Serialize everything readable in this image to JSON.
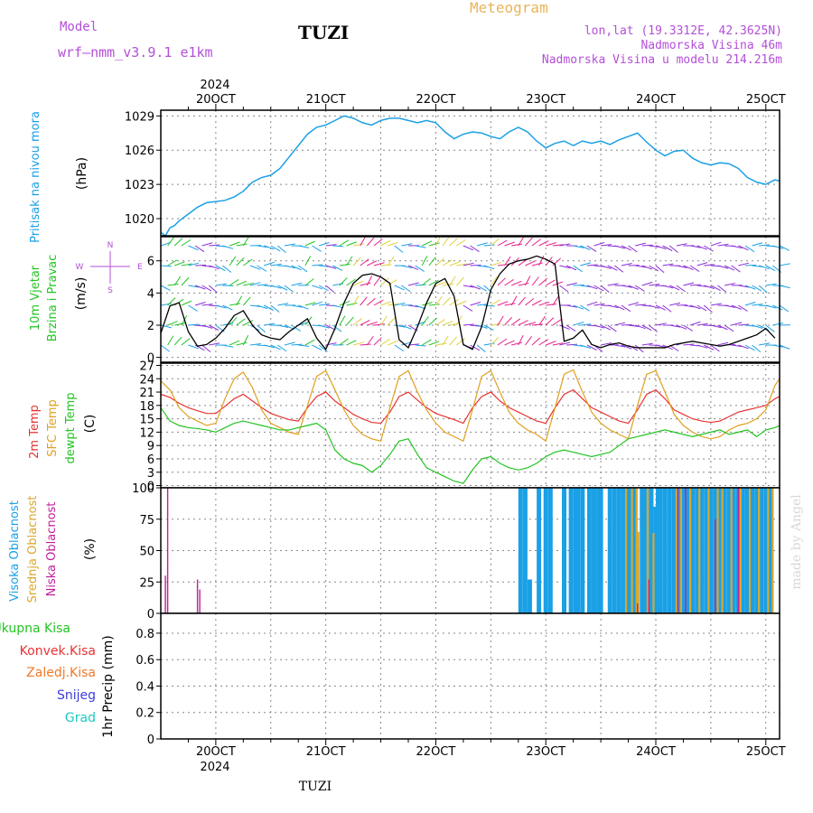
{
  "header": {
    "model_label": "Model",
    "model_name": "wrf—nmm_v3.9.1  e1km",
    "station": "TUZI",
    "product": "Meteogram",
    "lonlat": "lon,lat (19.3312E, 42.3625N)",
    "elevation": "Nadmorska Visina 46m",
    "model_elevation": "Nadmorska Visina u modelu 214.216m"
  },
  "footer": {
    "station": "TUZI",
    "credit": "made by Angel"
  },
  "time_axis": {
    "year": "2024",
    "labels": [
      "20OCT",
      "21OCT",
      "22OCT",
      "23OCT",
      "24OCT",
      "25OCT"
    ]
  },
  "panels": {
    "pressure": {
      "label": "Pritisak na nivou mora",
      "unit": "(hPa)"
    },
    "wind": {
      "label_line1": "10m Vjetar",
      "label_line2": "Brzina i Pravac",
      "unit": "(m/s)",
      "compass": {
        "n": "N",
        "s": "S",
        "w": "W",
        "e": "E"
      }
    },
    "temp": {
      "labels": [
        {
          "text": "2m Temp",
          "color": "#e83232"
        },
        {
          "text": "SFC Temp",
          "color": "#e0a020"
        },
        {
          "text": "dewpt Temp",
          "color": "#22c422"
        }
      ],
      "unit": "(C)"
    },
    "cloud": {
      "labels": [
        {
          "text": "Visoka Oblacnost",
          "color": "#1aa0e6"
        },
        {
          "text": "Srednja Oblacnost",
          "color": "#d8a830"
        },
        {
          "text": "Niska Oblacnost",
          "color": "#c0209a"
        }
      ],
      "unit": "(%)"
    },
    "precip": {
      "legend": [
        {
          "text": "Ukupna Kisa",
          "color": "#22c422"
        },
        {
          "text": "Konvek.Kisa",
          "color": "#e83232"
        },
        {
          "text": "Zaledj.Kisa",
          "color": "#f07828"
        },
        {
          "text": "Snijeg",
          "color": "#3c3cdc"
        },
        {
          "text": "Grad",
          "color": "#20c8c0"
        }
      ],
      "ylabel": "1hr Precip (mm)"
    }
  },
  "chart_data": [
    {
      "type": "line",
      "name": "pressure",
      "x_hours_from_19oct_12utc": [
        0,
        1,
        2,
        3,
        4,
        6,
        8,
        10,
        12,
        14,
        16,
        18,
        20,
        22,
        24,
        26,
        28,
        30,
        32,
        34,
        36,
        38,
        40,
        42,
        44,
        46,
        48,
        50,
        52,
        54,
        56,
        58,
        60,
        62,
        64,
        66,
        68,
        70,
        72,
        74,
        76,
        78,
        80,
        82,
        84,
        86,
        88,
        90,
        92,
        94,
        96,
        98,
        100,
        102,
        104,
        106,
        108,
        110,
        112,
        114,
        116,
        118,
        120,
        122,
        124,
        126,
        128,
        130,
        132,
        134,
        135
      ],
      "values": [
        1018.8,
        1018.5,
        1019.2,
        1019.4,
        1019.8,
        1020.4,
        1021.0,
        1021.4,
        1021.5,
        1021.6,
        1021.9,
        1022.4,
        1023.2,
        1023.6,
        1023.8,
        1024.4,
        1025.4,
        1026.4,
        1027.4,
        1028.0,
        1028.2,
        1028.6,
        1029.0,
        1028.8,
        1028.4,
        1028.2,
        1028.6,
        1028.8,
        1028.8,
        1028.6,
        1028.4,
        1028.6,
        1028.4,
        1027.6,
        1027.0,
        1027.4,
        1027.6,
        1027.5,
        1027.2,
        1027.0,
        1027.6,
        1028.0,
        1027.6,
        1026.8,
        1026.2,
        1026.6,
        1026.8,
        1026.4,
        1026.8,
        1026.6,
        1026.8,
        1026.5,
        1026.9,
        1027.2,
        1027.5,
        1026.7,
        1026.0,
        1025.5,
        1025.9,
        1026.0,
        1025.3,
        1024.9,
        1024.7,
        1024.9,
        1024.8,
        1024.4,
        1023.6,
        1023.2,
        1023.0,
        1023.4,
        1023.3
      ],
      "color": "#1aa0e6",
      "ylim": [
        1018.5,
        1029.5
      ],
      "yticks": [
        1020,
        1023,
        1026,
        1029
      ]
    },
    {
      "type": "line",
      "name": "wind_speed",
      "x_hours_from_19oct_12utc": [
        0,
        2,
        4,
        6,
        8,
        10,
        12,
        14,
        16,
        18,
        20,
        22,
        24,
        26,
        28,
        30,
        32,
        34,
        36,
        38,
        40,
        42,
        44,
        46,
        48,
        50,
        52,
        54,
        56,
        58,
        60,
        62,
        64,
        66,
        68,
        70,
        72,
        74,
        76,
        78,
        80,
        82,
        84,
        86,
        88,
        90,
        92,
        94,
        96,
        98,
        100,
        102,
        104,
        106,
        108,
        110,
        112,
        114,
        116,
        118,
        120,
        122,
        124,
        126,
        128,
        130,
        132,
        134
      ],
      "values": [
        1.5,
        3.2,
        3.4,
        1.6,
        0.7,
        0.8,
        1.2,
        1.8,
        2.6,
        2.9,
        2.0,
        1.4,
        1.2,
        1.1,
        1.6,
        2.0,
        2.4,
        1.2,
        0.5,
        1.8,
        3.4,
        4.6,
        5.1,
        5.2,
        5.0,
        4.6,
        1.1,
        0.6,
        1.9,
        3.4,
        4.6,
        4.9,
        3.8,
        0.8,
        0.5,
        1.9,
        4.2,
        5.2,
        5.8,
        6.0,
        6.1,
        6.3,
        6.1,
        5.8,
        1.0,
        1.2,
        1.7,
        0.8,
        0.6,
        0.8,
        0.9,
        0.7,
        0.6,
        0.6,
        0.6,
        0.6,
        0.8,
        0.9,
        1.0,
        0.9,
        0.8,
        0.7,
        0.8,
        1.0,
        1.2,
        1.4,
        1.8,
        1.2
      ],
      "color": "#000000",
      "ylim": [
        -0.3,
        7.5
      ],
      "yticks": [
        0,
        2,
        4,
        6
      ]
    },
    {
      "type": "line",
      "name": "temperature",
      "x_hours_from_19oct_12utc": [
        0,
        2,
        4,
        6,
        8,
        10,
        12,
        14,
        16,
        18,
        20,
        22,
        24,
        26,
        28,
        30,
        32,
        34,
        36,
        38,
        40,
        42,
        44,
        46,
        48,
        50,
        52,
        54,
        56,
        58,
        60,
        62,
        64,
        66,
        68,
        70,
        72,
        74,
        76,
        78,
        80,
        82,
        84,
        86,
        88,
        90,
        92,
        94,
        96,
        98,
        100,
        102,
        104,
        106,
        108,
        110,
        112,
        114,
        116,
        118,
        120,
        122,
        124,
        126,
        128,
        130,
        132,
        134,
        135
      ],
      "series": [
        {
          "name": "2m Temp",
          "color": "#e83232",
          "values": [
            20.5,
            19.8,
            18.5,
            17.5,
            16.8,
            16.2,
            16.2,
            17.8,
            19.5,
            20.5,
            19.0,
            17.5,
            16.2,
            15.5,
            14.8,
            14.5,
            17.5,
            20.0,
            21.0,
            19.0,
            17.5,
            16.0,
            15.0,
            14.2,
            14.0,
            16.5,
            20.0,
            21.0,
            19.2,
            17.5,
            16.2,
            15.5,
            14.8,
            14.0,
            17.5,
            20.0,
            21.0,
            19.0,
            17.5,
            16.5,
            15.5,
            14.5,
            14.0,
            17.5,
            20.5,
            21.5,
            19.5,
            17.5,
            16.5,
            15.5,
            14.5,
            14.0,
            17.0,
            20.5,
            21.5,
            19.5,
            17.0,
            16.0,
            15.0,
            14.5,
            14.2,
            14.5,
            15.5,
            16.5,
            17.0,
            17.5,
            18.0,
            19.5,
            20.0
          ]
        },
        {
          "name": "SFC Temp",
          "color": "#e0a020",
          "values": [
            23.5,
            21.5,
            17.5,
            15.5,
            14.5,
            13.5,
            14.0,
            19.5,
            24.0,
            25.5,
            22.0,
            17.0,
            14.0,
            13.0,
            12.0,
            11.5,
            18.0,
            24.5,
            25.8,
            21.5,
            17.0,
            13.5,
            11.5,
            10.5,
            10.0,
            17.5,
            24.5,
            25.8,
            21.0,
            17.0,
            14.0,
            12.0,
            11.0,
            10.0,
            17.0,
            24.5,
            25.8,
            21.0,
            16.5,
            14.0,
            12.5,
            11.5,
            10.0,
            17.5,
            25.0,
            26.0,
            21.0,
            16.5,
            14.0,
            12.5,
            11.5,
            10.5,
            18.0,
            25.0,
            25.8,
            21.0,
            16.0,
            13.5,
            12.0,
            11.0,
            10.5,
            11.0,
            12.5,
            13.5,
            14.0,
            15.0,
            17.0,
            22.5,
            24.0
          ]
        },
        {
          "name": "dewpt Temp",
          "color": "#22c422",
          "values": [
            17.5,
            14.5,
            13.5,
            13.0,
            12.8,
            12.5,
            12.0,
            13.0,
            14.0,
            14.5,
            14.0,
            13.5,
            13.0,
            12.5,
            12.5,
            13.0,
            13.5,
            14.0,
            12.5,
            8.0,
            6.0,
            5.0,
            4.5,
            3.0,
            4.5,
            7.0,
            10.0,
            10.5,
            7.0,
            4.0,
            3.0,
            2.0,
            1.0,
            0.5,
            3.5,
            6.0,
            6.5,
            5.0,
            4.0,
            3.5,
            4.0,
            5.0,
            6.5,
            7.5,
            8.0,
            7.5,
            7.0,
            6.5,
            7.0,
            7.5,
            9.0,
            10.5,
            11.0,
            11.5,
            12.0,
            12.5,
            12.0,
            11.5,
            11.0,
            11.5,
            12.0,
            12.5,
            11.5,
            12.0,
            12.5,
            11.0,
            12.5,
            13.0,
            13.5
          ]
        }
      ],
      "ylim": [
        -0.5,
        27.5
      ],
      "yticks": [
        0,
        3,
        6,
        9,
        12,
        15,
        18,
        21,
        24,
        27
      ]
    },
    {
      "type": "bar",
      "name": "cloud_cover",
      "series": [
        {
          "name": "Visoka Oblacnost",
          "color": "#1aa0e6",
          "x_hours_from_19oct_12utc": [
            78.5,
            79.5,
            80.5,
            82.5,
            84.0,
            85.0,
            88.0,
            89.5,
            90.5,
            91.0,
            92.0,
            93.5,
            94.5,
            95.5,
            96.0,
            98.0,
            99.0,
            100.0,
            101.0,
            102.0,
            102.5,
            103.0,
            103.5,
            105.0,
            105.5,
            106.0,
            107.0,
            108.0,
            108.5,
            109.0,
            110.0,
            111.0,
            112.0,
            113.0,
            114.0,
            115.0,
            116.0,
            117.0,
            118.0,
            119.0,
            120.0,
            121.0,
            122.0,
            123.0,
            124.0,
            125.0,
            126.0,
            127.0,
            128.0,
            129.0,
            130.0,
            131.0,
            132.0,
            133.0
          ],
          "values": [
            100,
            100,
            27,
            100,
            100,
            100,
            100,
            100,
            100,
            100,
            100,
            100,
            100,
            100,
            100,
            100,
            100,
            100,
            100,
            100,
            100,
            100,
            100,
            100,
            100,
            100,
            100,
            85,
            100,
            100,
            100,
            100,
            100,
            100,
            100,
            100,
            100,
            100,
            100,
            100,
            100,
            100,
            100,
            100,
            100,
            100,
            100,
            100,
            100,
            100,
            100,
            100,
            100,
            100
          ]
        },
        {
          "name": "Srednja Oblacnost",
          "color": "#d8a830",
          "x_hours_from_19oct_12utc": [
            101.5,
            102.8,
            103.8,
            104.2,
            106.2,
            107.5,
            112.5,
            113.5,
            115.5,
            117.5,
            119.5,
            121.5,
            122.5,
            124.5,
            126.5,
            128.5,
            130.5,
            132.5,
            133.5
          ],
          "values": [
            100,
            100,
            100,
            65,
            100,
            64,
            100,
            100,
            100,
            100,
            100,
            100,
            100,
            100,
            100,
            100,
            100,
            100,
            100
          ]
        },
        {
          "name": "Niska Oblacnost",
          "color": "#c0209a",
          "x_hours_from_19oct_12utc": [
            1.0,
            1.5,
            8.0,
            8.5,
            104.0,
            106.5,
            112.8,
            114.5,
            121.0,
            126.0
          ],
          "values": [
            30,
            100,
            27,
            19,
            8,
            27,
            100,
            100,
            75,
            100
          ]
        }
      ],
      "ylim": [
        0,
        100
      ],
      "yticks": [
        0,
        25,
        50,
        75,
        100
      ]
    },
    {
      "type": "bar",
      "name": "precip_1hr",
      "series": [],
      "ylim": [
        0,
        0.95
      ],
      "yticks": [
        0,
        0.2,
        0.4,
        0.6,
        0.8
      ]
    }
  ]
}
